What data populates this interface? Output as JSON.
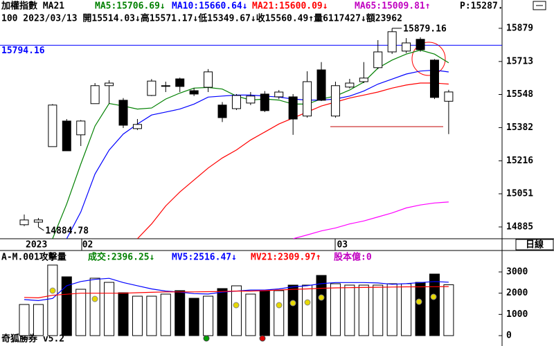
{
  "chart_data": [
    {
      "type": "candlestick",
      "title": "加權指數 MA21",
      "legend": [
        {
          "text": "MA5:15706.69↓",
          "color": "#008000"
        },
        {
          "text": "MA10:15660.64↓",
          "color": "#0000ff"
        },
        {
          "text": "MA21:15600.09↓",
          "color": "#ff0000"
        },
        {
          "text": "MA65:15009.81↑",
          "color": "#c000c0"
        },
        {
          "text": "P:15287.",
          "color": "#000000"
        }
      ],
      "info_line": "100 2023/03/13 開15514.03↓高15571.17↓低15349.67↓收15560.49↑量6117427↓額23962",
      "categories": [
        "2023",
        null,
        null,
        null,
        "02",
        null,
        null,
        null,
        null,
        null,
        null,
        null,
        null,
        null,
        null,
        null,
        null,
        null,
        null,
        null,
        null,
        null,
        "03",
        null,
        null,
        null,
        null,
        null,
        null,
        null,
        null
      ],
      "open": [
        14896,
        14909,
        15287,
        15415,
        15346,
        15502,
        15592,
        15519,
        15377,
        15543,
        15590,
        15626,
        15567,
        15584,
        15495,
        15477,
        15505,
        15550,
        15536,
        15536,
        15440,
        15671,
        15440,
        15585,
        15612,
        15682,
        15761,
        15765,
        15824,
        15720,
        15514.03
      ],
      "high": [
        14947,
        14930,
        15500,
        15425,
        15420,
        15605,
        15619,
        15530,
        15425,
        15625,
        15612,
        15632,
        15580,
        15675,
        15510,
        15550,
        15560,
        15565,
        15570,
        15550,
        15664,
        15710,
        15612,
        15626,
        15710,
        15820,
        15879.16,
        15830,
        15834,
        15725,
        15571.17
      ],
      "low": [
        14889,
        14884.78,
        15287,
        15266,
        15290,
        15502,
        15502,
        15380,
        15370,
        15540,
        15560,
        15560,
        15540,
        15560,
        15410,
        15470,
        15495,
        15460,
        15525,
        15346,
        15432,
        15515,
        15432,
        15578,
        15605,
        15675,
        15751,
        15755,
        15762,
        15525,
        15349.67
      ],
      "close": [
        14920,
        14920,
        15495,
        15266,
        15415,
        15592,
        15605,
        15394,
        15398,
        15615,
        15592,
        15588,
        15550,
        15661,
        15432,
        15543,
        15540,
        15467,
        15560,
        15425,
        15612,
        15519,
        15592,
        15605,
        15630,
        15761,
        15862,
        15806,
        15772,
        15533,
        15560.49
      ],
      "high_labels": [
        null,
        null,
        null,
        null,
        null,
        null,
        null,
        null,
        null,
        null,
        null,
        null,
        null,
        null,
        null,
        null,
        null,
        null,
        null,
        null,
        null,
        null,
        null,
        null,
        null,
        null,
        "15879.16",
        null,
        null,
        null,
        null
      ],
      "low_labels": [
        null,
        "14884.78",
        null,
        null,
        null,
        null,
        null,
        null,
        null,
        null,
        null,
        null,
        null,
        null,
        null,
        null,
        null,
        null,
        null,
        null,
        null,
        null,
        null,
        null,
        null,
        null,
        null,
        null,
        null,
        null,
        null
      ],
      "series": [
        {
          "name": "MA5",
          "color": "#008000",
          "values": [
            null,
            null,
            14826,
            15000,
            15200,
            15390,
            15503,
            15490,
            15475,
            15480,
            15525,
            15555,
            15580,
            15583,
            15575,
            15540,
            15520,
            15525,
            15520,
            15500,
            15500,
            15525,
            15540,
            15570,
            15610,
            15680,
            15720,
            15750,
            15770,
            15750,
            15706.69
          ]
        },
        {
          "name": "MA10",
          "color": "#0000ff",
          "values": [
            null,
            null,
            null,
            14826,
            14960,
            15150,
            15270,
            15350,
            15400,
            15445,
            15460,
            15475,
            15500,
            15535,
            15540,
            15545,
            15545,
            15540,
            15535,
            15525,
            15520,
            15520,
            15525,
            15540,
            15565,
            15600,
            15625,
            15650,
            15665,
            15670,
            15660.64
          ]
        },
        {
          "name": "MA21",
          "color": "#ff0000",
          "values": [
            null,
            null,
            null,
            null,
            null,
            null,
            null,
            null,
            14826,
            14900,
            14990,
            15060,
            15120,
            15180,
            15230,
            15270,
            15320,
            15360,
            15400,
            15430,
            15460,
            15490,
            15510,
            15530,
            15545,
            15560,
            15580,
            15595,
            15605,
            15605,
            15600.09
          ]
        },
        {
          "name": "MA65",
          "color": "#ff00ff",
          "values": [
            null,
            null,
            null,
            null,
            null,
            null,
            null,
            null,
            null,
            null,
            null,
            null,
            null,
            null,
            null,
            null,
            null,
            null,
            null,
            14826,
            14845,
            14865,
            14880,
            14900,
            14915,
            14935,
            14955,
            14980,
            14995,
            15005,
            15009.81
          ]
        }
      ],
      "reference_lines": [
        {
          "value": 15794.16,
          "label": "15794.16",
          "color": "#0000ff"
        }
      ],
      "ylim": [
        14826,
        15896
      ],
      "yticks": [
        15879,
        15713,
        15548,
        15382,
        15216,
        15051,
        14885
      ]
    },
    {
      "type": "volume",
      "title": "A-M.001攻擊量",
      "legend": [
        {
          "text": "成交:2396.25↓",
          "color": "#008000"
        },
        {
          "text": "MV5:2516.47↓",
          "color": "#0000ff"
        },
        {
          "text": "MV21:2309.97↑",
          "color": "#ff0000"
        },
        {
          "text": "股本億:0",
          "color": "#c000c0"
        }
      ],
      "values": [
        1467,
        1467,
        3325,
        2771,
        2184,
        2706,
        2510,
        2021,
        1858,
        1858,
        1956,
        2119,
        1760,
        1858,
        2217,
        2347,
        1956,
        2119,
        2119,
        2380,
        2380,
        2836,
        2445,
        2380,
        2380,
        2380,
        2445,
        2445,
        2510,
        2901,
        2396.25
      ],
      "series": [
        {
          "name": "MV5",
          "color": "#0000ff",
          "values": [
            1700,
            1650,
            1750,
            2350,
            2550,
            2650,
            2700,
            2500,
            2350,
            2200,
            2100,
            2050,
            1980,
            1960,
            2050,
            2100,
            2150,
            2150,
            2200,
            2300,
            2350,
            2450,
            2500,
            2500,
            2500,
            2480,
            2420,
            2450,
            2500,
            2550,
            2516.47
          ]
        },
        {
          "name": "MV21",
          "color": "#ff0000",
          "values": [
            1800,
            1780,
            1900,
            1950,
            2000,
            2000,
            2000,
            2000,
            2020,
            2040,
            2060,
            2060,
            2060,
            2070,
            2080,
            2100,
            2100,
            2120,
            2150,
            2180,
            2200,
            2230,
            2250,
            2260,
            2270,
            2280,
            2290,
            2300,
            2300,
            2305,
            2309.97
          ]
        }
      ],
      "ylim": [
        -489,
        3945
      ],
      "yticks": [
        3000,
        2000,
        1000,
        0
      ]
    }
  ],
  "period": "日線",
  "footer": "奇狐勝券 v5.2"
}
